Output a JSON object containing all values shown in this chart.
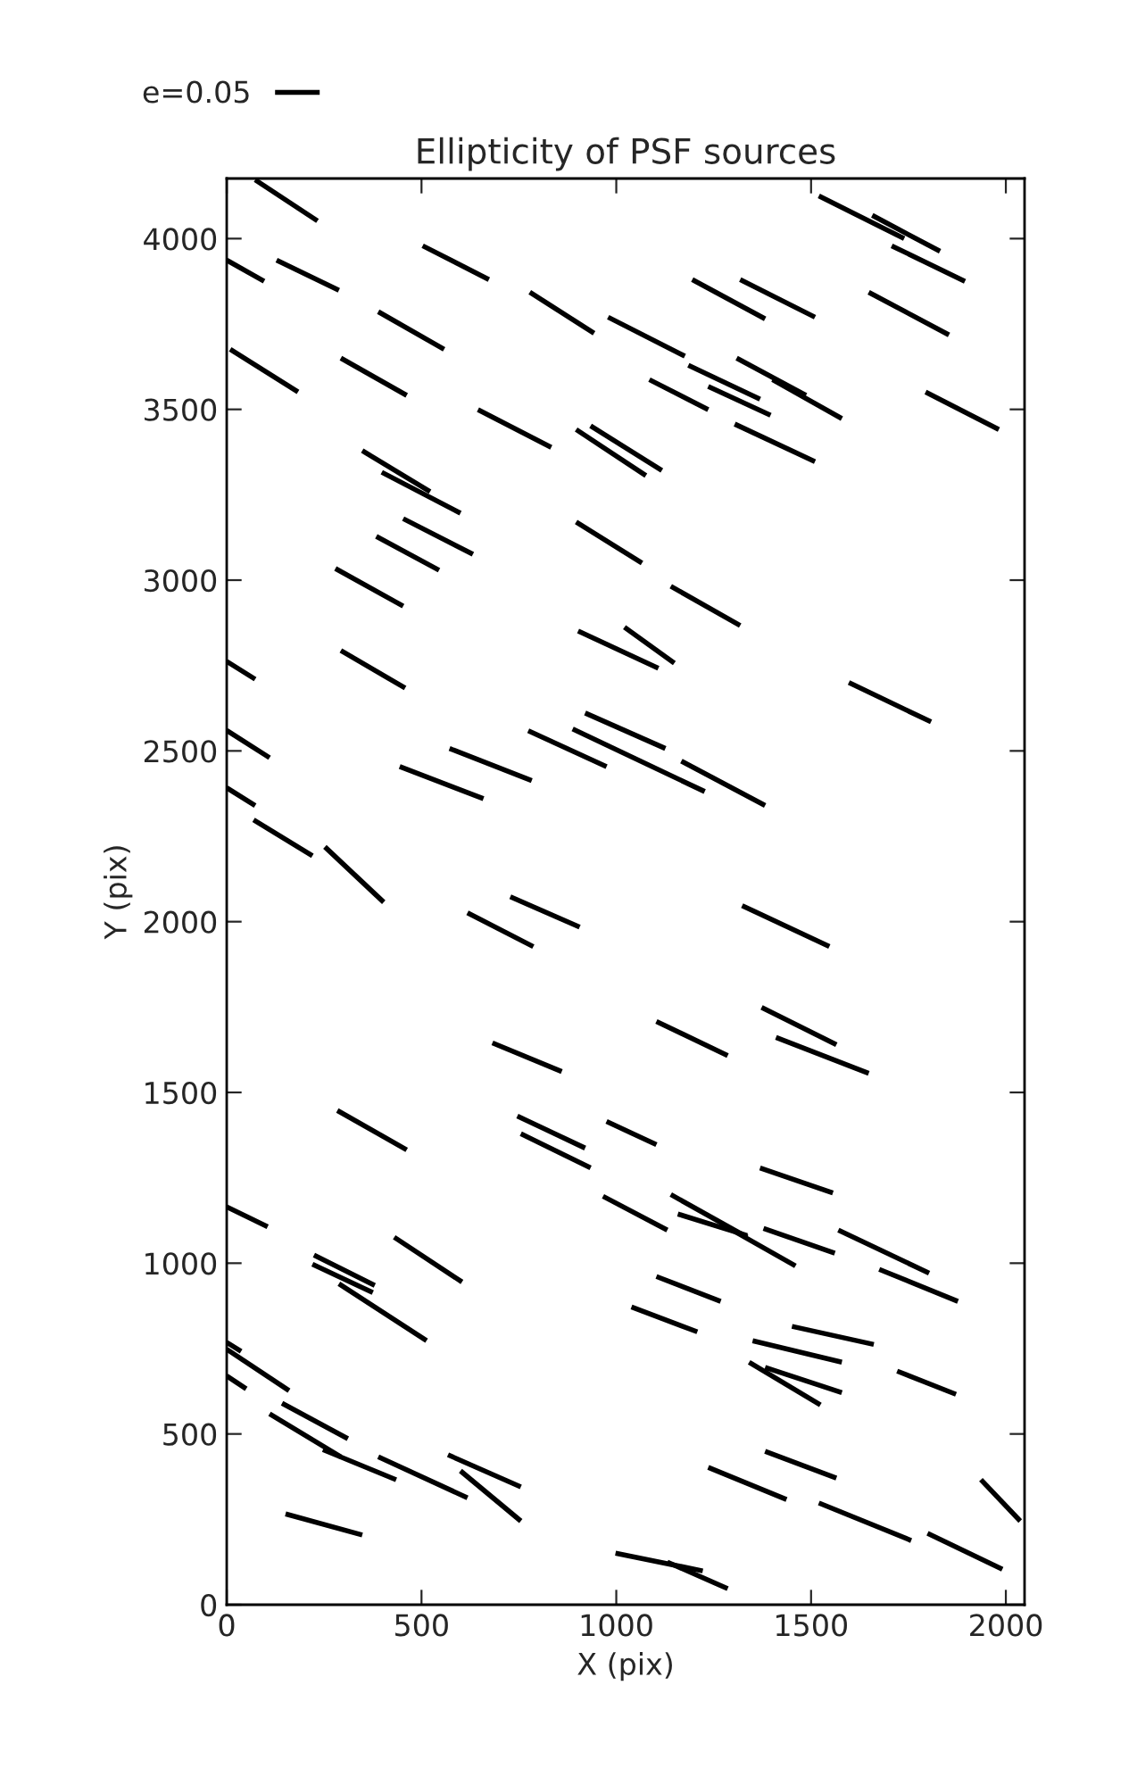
{
  "chart_data": {
    "type": "line",
    "title": "Ellipticity of PSF sources",
    "xlabel": "X (pix)",
    "ylabel": "Y (pix)",
    "xlim": [
      0,
      2048
    ],
    "ylim": [
      0,
      4176
    ],
    "xticks": [
      0,
      500,
      1000,
      1500,
      2000
    ],
    "yticks": [
      0,
      500,
      1000,
      1500,
      2000,
      2500,
      3000,
      3500,
      4000
    ],
    "grid": false,
    "legend": "top left",
    "marker": "none",
    "line_style": "solid",
    "series": [
      {
        "name": "e=0.05",
        "color": "#000000",
        "x": [
          73,
          233
        ],
        "values": [
          4172,
          4052
        ]
      },
      {
        "color": "#000000",
        "x": [
          0,
          96
        ],
        "values": [
          3937,
          3875
        ]
      },
      {
        "color": "#000000",
        "x": [
          128,
          288
        ],
        "values": [
          3937,
          3849
        ]
      },
      {
        "color": "#000000",
        "x": [
          503,
          673
        ],
        "values": [
          3979,
          3880
        ]
      },
      {
        "color": "#000000",
        "x": [
          778,
          943
        ],
        "values": [
          3843,
          3723
        ]
      },
      {
        "color": "#000000",
        "x": [
          979,
          1176
        ],
        "values": [
          3770,
          3656
        ]
      },
      {
        "color": "#000000",
        "x": [
          1195,
          1382
        ],
        "values": [
          3880,
          3765
        ]
      },
      {
        "color": "#000000",
        "x": [
          1318,
          1510
        ],
        "values": [
          3880,
          3770
        ]
      },
      {
        "color": "#000000",
        "x": [
          1520,
          1739
        ],
        "values": [
          4125,
          4000
        ]
      },
      {
        "color": "#000000",
        "x": [
          1657,
          1831
        ],
        "values": [
          4068,
          3963
        ]
      },
      {
        "color": "#000000",
        "x": [
          1707,
          1895
        ],
        "values": [
          3979,
          3875
        ]
      },
      {
        "color": "#000000",
        "x": [
          1648,
          1854
        ],
        "values": [
          3843,
          3718
        ]
      },
      {
        "color": "#000000",
        "x": [
          389,
          558
        ],
        "values": [
          3786,
          3676
        ]
      },
      {
        "color": "#000000",
        "x": [
          9,
          183
        ],
        "values": [
          3676,
          3551
        ]
      },
      {
        "color": "#000000",
        "x": [
          293,
          462
        ],
        "values": [
          3650,
          3541
        ]
      },
      {
        "color": "#000000",
        "x": [
          645,
          833
        ],
        "values": [
          3499,
          3389
        ]
      },
      {
        "color": "#000000",
        "x": [
          897,
          1076
        ],
        "values": [
          3441,
          3306
        ]
      },
      {
        "color": "#000000",
        "x": [
          934,
          1117
        ],
        "values": [
          3452,
          3321
        ]
      },
      {
        "color": "#000000",
        "x": [
          1085,
          1236
        ],
        "values": [
          3587,
          3499
        ]
      },
      {
        "color": "#000000",
        "x": [
          1185,
          1369
        ],
        "values": [
          3629,
          3530
        ]
      },
      {
        "color": "#000000",
        "x": [
          1236,
          1396
        ],
        "values": [
          3567,
          3483
        ]
      },
      {
        "color": "#000000",
        "x": [
          1309,
          1487
        ],
        "values": [
          3650,
          3541
        ]
      },
      {
        "color": "#000000",
        "x": [
          1401,
          1579
        ],
        "values": [
          3587,
          3473
        ]
      },
      {
        "color": "#000000",
        "x": [
          1304,
          1510
        ],
        "values": [
          3457,
          3347
        ]
      },
      {
        "color": "#000000",
        "x": [
          1794,
          1982
        ],
        "values": [
          3551,
          3441
        ]
      },
      {
        "color": "#000000",
        "x": [
          348,
          522
        ],
        "values": [
          3379,
          3259
        ]
      },
      {
        "color": "#000000",
        "x": [
          398,
          600
        ],
        "values": [
          3316,
          3196
        ]
      },
      {
        "color": "#000000",
        "x": [
          384,
          545
        ],
        "values": [
          3128,
          3029
        ]
      },
      {
        "color": "#000000",
        "x": [
          453,
          632
        ],
        "values": [
          3180,
          3076
        ]
      },
      {
        "color": "#000000",
        "x": [
          897,
          1066
        ],
        "values": [
          3170,
          3050
        ]
      },
      {
        "color": "#000000",
        "x": [
          279,
          453
        ],
        "values": [
          3034,
          2924
        ]
      },
      {
        "color": "#000000",
        "x": [
          1140,
          1318
        ],
        "values": [
          2982,
          2867
        ]
      },
      {
        "color": "#000000",
        "x": [
          293,
          458
        ],
        "values": [
          2794,
          2684
        ]
      },
      {
        "color": "#000000",
        "x": [
          902,
          1108
        ],
        "values": [
          2851,
          2742
        ]
      },
      {
        "color": "#000000",
        "x": [
          1021,
          1149
        ],
        "values": [
          2862,
          2757
        ]
      },
      {
        "color": "#000000",
        "x": [
          1597,
          1808
        ],
        "values": [
          2700,
          2585
        ]
      },
      {
        "color": "#000000",
        "x": [
          0,
          73
        ],
        "values": [
          2762,
          2710
        ]
      },
      {
        "color": "#000000",
        "x": [
          0,
          110
        ],
        "values": [
          2560,
          2480
        ]
      },
      {
        "color": "#000000",
        "x": [
          0,
          73
        ],
        "values": [
          2392,
          2340
        ]
      },
      {
        "color": "#000000",
        "x": [
          69,
          220
        ],
        "values": [
          2298,
          2193
        ]
      },
      {
        "color": "#000000",
        "x": [
          252,
          403
        ],
        "values": [
          2219,
          2057
        ]
      },
      {
        "color": "#000000",
        "x": [
          444,
          659
        ],
        "values": [
          2454,
          2360
        ]
      },
      {
        "color": "#000000",
        "x": [
          572,
          783
        ],
        "values": [
          2507,
          2413
        ]
      },
      {
        "color": "#000000",
        "x": [
          774,
          975
        ],
        "values": [
          2559,
          2454
        ]
      },
      {
        "color": "#000000",
        "x": [
          888,
          1227
        ],
        "values": [
          2564,
          2381
        ]
      },
      {
        "color": "#000000",
        "x": [
          920,
          1126
        ],
        "values": [
          2611,
          2507
        ]
      },
      {
        "color": "#000000",
        "x": [
          1167,
          1382
        ],
        "values": [
          2470,
          2340
        ]
      },
      {
        "color": "#000000",
        "x": [
          618,
          787
        ],
        "values": [
          2026,
          1927
        ]
      },
      {
        "color": "#000000",
        "x": [
          728,
          906
        ],
        "values": [
          2073,
          1984
        ]
      },
      {
        "color": "#000000",
        "x": [
          1323,
          1547
        ],
        "values": [
          2047,
          1927
        ]
      },
      {
        "color": "#000000",
        "x": [
          1373,
          1565
        ],
        "values": [
          1749,
          1640
        ]
      },
      {
        "color": "#000000",
        "x": [
          1410,
          1648
        ],
        "values": [
          1661,
          1556
        ]
      },
      {
        "color": "#000000",
        "x": [
          1103,
          1286
        ],
        "values": [
          1708,
          1608
        ]
      },
      {
        "color": "#000000",
        "x": [
          682,
          860
        ],
        "values": [
          1645,
          1561
        ]
      },
      {
        "color": "#000000",
        "x": [
          284,
          462
        ],
        "values": [
          1447,
          1332
        ]
      },
      {
        "color": "#000000",
        "x": [
          746,
          920
        ],
        "values": [
          1431,
          1337
        ]
      },
      {
        "color": "#000000",
        "x": [
          755,
          934
        ],
        "values": [
          1379,
          1279
        ]
      },
      {
        "color": "#000000",
        "x": [
          975,
          1103
        ],
        "values": [
          1415,
          1347
        ]
      },
      {
        "color": "#000000",
        "x": [
          1369,
          1556
        ],
        "values": [
          1279,
          1206
        ]
      },
      {
        "color": "#000000",
        "x": [
          966,
          1131
        ],
        "values": [
          1196,
          1097
        ]
      },
      {
        "color": "#000000",
        "x": [
          1140,
          1336
        ],
        "values": [
          1201,
          1076
        ]
      },
      {
        "color": "#000000",
        "x": [
          1158,
          1336
        ],
        "values": [
          1144,
          1081
        ]
      },
      {
        "color": "#000000",
        "x": [
          1378,
          1561
        ],
        "values": [
          1102,
          1029
        ]
      },
      {
        "color": "#000000",
        "x": [
          1570,
          1803
        ],
        "values": [
          1097,
          971
        ]
      },
      {
        "color": "#000000",
        "x": [
          1282,
          1460
        ],
        "values": [
          1107,
          992
        ]
      },
      {
        "color": "#000000",
        "x": [
          1675,
          1877
        ],
        "values": [
          982,
          888
        ]
      },
      {
        "color": "#000000",
        "x": [
          1103,
          1268
        ],
        "values": [
          961,
          888
        ]
      },
      {
        "color": "#000000",
        "x": [
          1039,
          1208
        ],
        "values": [
          872,
          799
        ]
      },
      {
        "color": "#000000",
        "x": [
          1451,
          1661
        ],
        "values": [
          815,
          762
        ]
      },
      {
        "color": "#000000",
        "x": [
          1350,
          1579
        ],
        "values": [
          773,
          710
        ]
      },
      {
        "color": "#000000",
        "x": [
          1341,
          1524
        ],
        "values": [
          710,
          585
        ]
      },
      {
        "color": "#000000",
        "x": [
          1382,
          1579
        ],
        "values": [
          695,
          621
        ]
      },
      {
        "color": "#000000",
        "x": [
          1721,
          1872
        ],
        "values": [
          684,
          616
        ]
      },
      {
        "color": "#000000",
        "x": [
          430,
          604
        ],
        "values": [
          1076,
          945
        ]
      },
      {
        "color": "#000000",
        "x": [
          224,
          380
        ],
        "values": [
          1024,
          935
        ]
      },
      {
        "color": "#000000",
        "x": [
          220,
          375
        ],
        "values": [
          997,
          914
        ]
      },
      {
        "color": "#000000",
        "x": [
          288,
          513
        ],
        "values": [
          940,
          773
        ]
      },
      {
        "color": "#000000",
        "x": [
          0,
          37
        ],
        "values": [
          768,
          742
        ]
      },
      {
        "color": "#000000",
        "x": [
          0,
          160
        ],
        "values": [
          748,
          627
        ]
      },
      {
        "color": "#000000",
        "x": [
          0,
          50
        ],
        "values": [
          670,
          632
        ]
      },
      {
        "color": "#000000",
        "x": [
          142,
          311
        ],
        "values": [
          590,
          486
        ]
      },
      {
        "color": "#000000",
        "x": [
          110,
          293
        ],
        "values": [
          559,
          433
        ]
      },
      {
        "color": "#000000",
        "x": [
          247,
          435
        ],
        "values": [
          454,
          366
        ]
      },
      {
        "color": "#000000",
        "x": [
          389,
          618
        ],
        "values": [
          433,
          313
        ]
      },
      {
        "color": "#000000",
        "x": [
          568,
          755
        ],
        "values": [
          439,
          345
        ]
      },
      {
        "color": "#000000",
        "x": [
          600,
          755
        ],
        "values": [
          392,
          245
        ]
      },
      {
        "color": "#000000",
        "x": [
          151,
          348
        ],
        "values": [
          266,
          204
        ]
      },
      {
        "color": "#000000",
        "x": [
          998,
          1222
        ],
        "values": [
          151,
          99
        ]
      },
      {
        "color": "#000000",
        "x": [
          1131,
          1286
        ],
        "values": [
          125,
          47
        ]
      },
      {
        "color": "#000000",
        "x": [
          1236,
          1437
        ],
        "values": [
          402,
          308
        ]
      },
      {
        "color": "#000000",
        "x": [
          1382,
          1565
        ],
        "values": [
          449,
          371
        ]
      },
      {
        "color": "#000000",
        "x": [
          1520,
          1757
        ],
        "values": [
          298,
          188
        ]
      },
      {
        "color": "#000000",
        "x": [
          1799,
          1991
        ],
        "values": [
          209,
          104
        ]
      },
      {
        "color": "#000000",
        "x": [
          1936,
          2037
        ],
        "values": [
          366,
          245
        ]
      },
      {
        "color": "#000000",
        "x": [
          0,
          105
        ],
        "values": [
          1165,
          1107
        ]
      }
    ]
  }
}
